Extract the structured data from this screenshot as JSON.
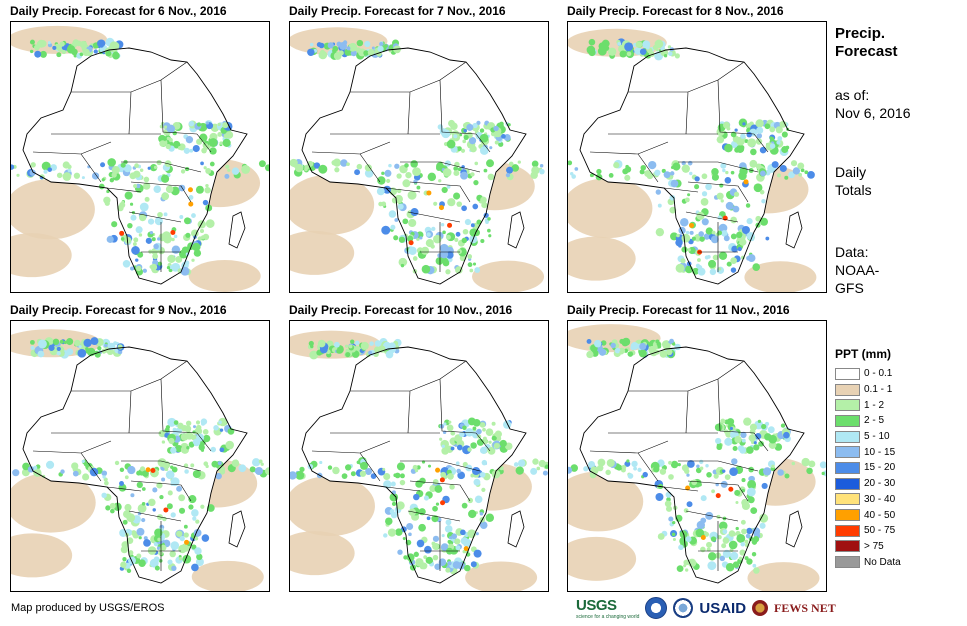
{
  "panels": [
    {
      "title": "Daily Precip. Forecast for 6 Nov., 2016"
    },
    {
      "title": "Daily Precip. Forecast for 7 Nov., 2016"
    },
    {
      "title": "Daily Precip. Forecast for 8 Nov., 2016"
    },
    {
      "title": "Daily Precip. Forecast for 9 Nov., 2016"
    },
    {
      "title": "Daily Precip. Forecast for 10 Nov., 2016"
    },
    {
      "title": "Daily Precip. Forecast for 11 Nov., 2016"
    }
  ],
  "sidebar": {
    "heading_line1": "Precip.",
    "heading_line2": "Forecast",
    "asof_line1": "as of:",
    "asof_line2": "Nov 6, 2016",
    "daily_line1": "Daily",
    "daily_line2": "Totals",
    "data_line1": "Data:",
    "data_line2": "NOAA-",
    "data_line3": "GFS"
  },
  "legend": {
    "title": "PPT (mm)",
    "items": [
      {
        "label": "0 - 0.1",
        "color": "#ffffff"
      },
      {
        "label": "0.1 - 1",
        "color": "#e8d2b4"
      },
      {
        "label": "1 - 2",
        "color": "#b4f0a8"
      },
      {
        "label": "2 - 5",
        "color": "#6cde6c"
      },
      {
        "label": "5 - 10",
        "color": "#b0e8f4"
      },
      {
        "label": "10 - 15",
        "color": "#8cbcf0"
      },
      {
        "label": "15 - 20",
        "color": "#4c8ce8"
      },
      {
        "label": "20 - 30",
        "color": "#1c5cdc"
      },
      {
        "label": "30 - 40",
        "color": "#ffe27a"
      },
      {
        "label": "40 - 50",
        "color": "#ffa000"
      },
      {
        "label": "50 - 75",
        "color": "#ff3c00"
      },
      {
        "label": "> 75",
        "color": "#a01010"
      },
      {
        "label": "No Data",
        "color": "#999999"
      }
    ]
  },
  "footer": {
    "credit": "Map produced by USGS/EROS",
    "logo_usgs": "USGS",
    "logo_usgs_tagline": "science for a changing world",
    "logo_usaid": "USAID",
    "logo_fews": "FEWS NET"
  }
}
